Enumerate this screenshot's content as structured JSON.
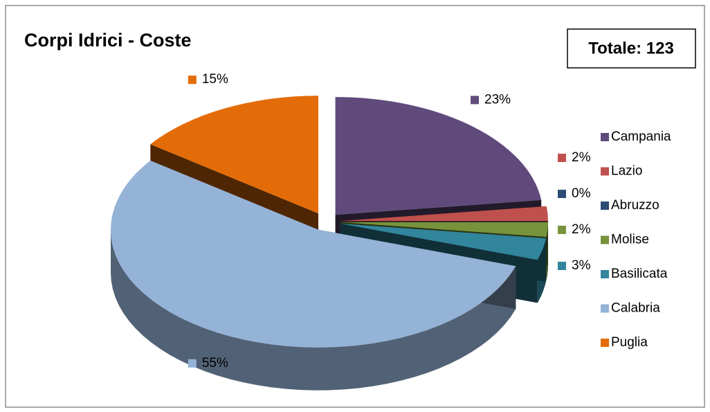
{
  "chart_data": {
    "type": "pie",
    "title": "Corpi Idrici - Coste",
    "annotation": "Totale: 123",
    "categories": [
      "Campania",
      "Lazio",
      "Abruzzo",
      "Molise",
      "Basilicata",
      "Calabria",
      "Puglia"
    ],
    "values": [
      23,
      2,
      0,
      2,
      3,
      55,
      15
    ],
    "value_labels": [
      "23%",
      "2%",
      "0%",
      "2%",
      "3%",
      "55%",
      "15%"
    ],
    "colors": [
      "#604a7b",
      "#c0504d",
      "#2c4d75",
      "#77933c",
      "#31859c",
      "#95b3d7",
      "#e36c09"
    ],
    "legend": "right"
  }
}
